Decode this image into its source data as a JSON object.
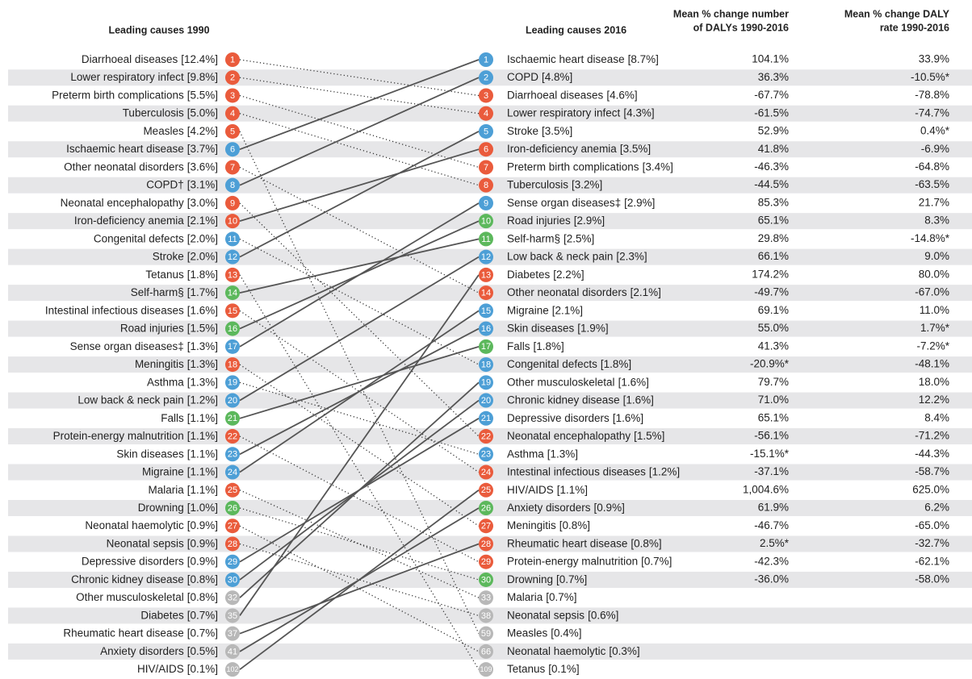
{
  "header": {
    "left": "Leading causes 1990",
    "right": "Leading causes 2016",
    "col3": [
      "Mean % change number",
      "of DALYs 1990-2016"
    ],
    "col4": [
      "Mean % change DALY",
      "rate 1990-2016"
    ]
  },
  "causes_1990": [
    {
      "rank": 1,
      "name": "Diarrhoeal diseases",
      "share": "[12.4%]",
      "color": "#ea5b3c"
    },
    {
      "rank": 2,
      "name": "Lower respiratory infect",
      "share": "[9.8%]",
      "color": "#ea5b3c"
    },
    {
      "rank": 3,
      "name": "Preterm birth complications",
      "share": "[5.5%]",
      "color": "#ea5b3c"
    },
    {
      "rank": 4,
      "name": "Tuberculosis",
      "share": "[5.0%]",
      "color": "#ea5b3c"
    },
    {
      "rank": 5,
      "name": "Measles",
      "share": "[4.2%]",
      "color": "#ea5b3c"
    },
    {
      "rank": 6,
      "name": "Ischaemic heart disease",
      "share": "[3.7%]",
      "color": "#4d9fd6"
    },
    {
      "rank": 7,
      "name": "Other neonatal disorders",
      "share": "[3.6%]",
      "color": "#ea5b3c"
    },
    {
      "rank": 8,
      "name": "COPD†",
      "share": "[3.1%]",
      "color": "#4d9fd6"
    },
    {
      "rank": 9,
      "name": "Neonatal encephalopathy",
      "share": "[3.0%]",
      "color": "#ea5b3c"
    },
    {
      "rank": 10,
      "name": "Iron-deficiency anemia",
      "share": "[2.1%]",
      "color": "#ea5b3c"
    },
    {
      "rank": 11,
      "name": "Congenital defects",
      "share": "[2.0%]",
      "color": "#4d9fd6"
    },
    {
      "rank": 12,
      "name": "Stroke",
      "share": "[2.0%]",
      "color": "#4d9fd6"
    },
    {
      "rank": 13,
      "name": "Tetanus",
      "share": "[1.8%]",
      "color": "#ea5b3c"
    },
    {
      "rank": 14,
      "name": "Self-harm§",
      "share": "[1.7%]",
      "color": "#5cb85c"
    },
    {
      "rank": 15,
      "name": "Intestinal infectious diseases",
      "share": "[1.6%]",
      "color": "#ea5b3c"
    },
    {
      "rank": 16,
      "name": "Road injuries",
      "share": "[1.5%]",
      "color": "#5cb85c"
    },
    {
      "rank": 17,
      "name": "Sense organ diseases‡",
      "share": "[1.3%]",
      "color": "#4d9fd6"
    },
    {
      "rank": 18,
      "name": "Meningitis",
      "share": "[1.3%]",
      "color": "#ea5b3c"
    },
    {
      "rank": 19,
      "name": "Asthma",
      "share": "[1.3%]",
      "color": "#4d9fd6"
    },
    {
      "rank": 20,
      "name": "Low back & neck pain",
      "share": "[1.2%]",
      "color": "#4d9fd6"
    },
    {
      "rank": 21,
      "name": "Falls",
      "share": "[1.1%]",
      "color": "#5cb85c"
    },
    {
      "rank": 22,
      "name": "Protein-energy malnutrition",
      "share": "[1.1%]",
      "color": "#ea5b3c"
    },
    {
      "rank": 23,
      "name": "Skin diseases",
      "share": "[1.1%]",
      "color": "#4d9fd6"
    },
    {
      "rank": 24,
      "name": "Migraine",
      "share": "[1.1%]",
      "color": "#4d9fd6"
    },
    {
      "rank": 25,
      "name": "Malaria",
      "share": "[1.1%]",
      "color": "#ea5b3c"
    },
    {
      "rank": 26,
      "name": "Drowning",
      "share": "[1.0%]",
      "color": "#5cb85c"
    },
    {
      "rank": 27,
      "name": "Neonatal haemolytic",
      "share": "[0.9%]",
      "color": "#ea5b3c"
    },
    {
      "rank": 28,
      "name": "Neonatal sepsis",
      "share": "[0.9%]",
      "color": "#ea5b3c"
    },
    {
      "rank": 29,
      "name": "Depressive disorders",
      "share": "[0.9%]",
      "color": "#4d9fd6"
    },
    {
      "rank": 30,
      "name": "Chronic kidney disease",
      "share": "[0.8%]",
      "color": "#4d9fd6"
    },
    {
      "rank": 32,
      "name": "Other musculoskeletal",
      "share": "[0.8%]",
      "color": "#b8b8b8"
    },
    {
      "rank": 35,
      "name": "Diabetes",
      "share": "[0.7%]",
      "color": "#b8b8b8"
    },
    {
      "rank": 37,
      "name": "Rheumatic heart disease",
      "share": "[0.7%]",
      "color": "#b8b8b8"
    },
    {
      "rank": 41,
      "name": "Anxiety disorders",
      "share": "[0.5%]",
      "color": "#b8b8b8"
    },
    {
      "rank": 102,
      "name": "HIV/AIDS",
      "share": "[0.1%]",
      "color": "#b8b8b8"
    }
  ],
  "causes_2016": [
    {
      "rank": 1,
      "name": "Ischaemic heart disease",
      "share": "[8.7%]",
      "change_number": "104.1%",
      "change_rate": "33.9%",
      "color": "#4d9fd6"
    },
    {
      "rank": 2,
      "name": "COPD",
      "share": "[4.8%]",
      "change_number": "36.3%",
      "change_rate": "-10.5%*",
      "color": "#4d9fd6"
    },
    {
      "rank": 3,
      "name": "Diarrhoeal diseases",
      "share": "[4.6%]",
      "change_number": "-67.7%",
      "change_rate": "-78.8%",
      "color": "#ea5b3c"
    },
    {
      "rank": 4,
      "name": "Lower respiratory infect",
      "share": "[4.3%]",
      "change_number": "-61.5%",
      "change_rate": "-74.7%",
      "color": "#ea5b3c"
    },
    {
      "rank": 5,
      "name": "Stroke",
      "share": "[3.5%]",
      "change_number": "52.9%",
      "change_rate": "0.4%*",
      "color": "#4d9fd6"
    },
    {
      "rank": 6,
      "name": "Iron-deficiency anemia",
      "share": "[3.5%]",
      "change_number": "41.8%",
      "change_rate": "-6.9%",
      "color": "#ea5b3c"
    },
    {
      "rank": 7,
      "name": "Preterm birth complications",
      "share": "[3.4%]",
      "change_number": "-46.3%",
      "change_rate": "-64.8%",
      "color": "#ea5b3c"
    },
    {
      "rank": 8,
      "name": "Tuberculosis",
      "share": "[3.2%]",
      "change_number": "-44.5%",
      "change_rate": "-63.5%",
      "color": "#ea5b3c"
    },
    {
      "rank": 9,
      "name": "Sense organ diseases‡",
      "share": "[2.9%]",
      "change_number": "85.3%",
      "change_rate": "21.7%",
      "color": "#4d9fd6"
    },
    {
      "rank": 10,
      "name": "Road injuries",
      "share": "[2.9%]",
      "change_number": "65.1%",
      "change_rate": "8.3%",
      "color": "#5cb85c"
    },
    {
      "rank": 11,
      "name": "Self-harm§",
      "share": "[2.5%]",
      "change_number": "29.8%",
      "change_rate": "-14.8%*",
      "color": "#5cb85c"
    },
    {
      "rank": 12,
      "name": "Low back & neck pain",
      "share": "[2.3%]",
      "change_number": "66.1%",
      "change_rate": "9.0%",
      "color": "#4d9fd6"
    },
    {
      "rank": 13,
      "name": "Diabetes",
      "share": "[2.2%]",
      "change_number": "174.2%",
      "change_rate": "80.0%",
      "color": "#ea5b3c"
    },
    {
      "rank": 14,
      "name": "Other neonatal disorders",
      "share": "[2.1%]",
      "change_number": "-49.7%",
      "change_rate": "-67.0%",
      "color": "#ea5b3c"
    },
    {
      "rank": 15,
      "name": "Migraine",
      "share": "[2.1%]",
      "change_number": "69.1%",
      "change_rate": "11.0%",
      "color": "#4d9fd6"
    },
    {
      "rank": 16,
      "name": "Skin diseases",
      "share": "[1.9%]",
      "change_number": "55.0%",
      "change_rate": "1.7%*",
      "color": "#4d9fd6"
    },
    {
      "rank": 17,
      "name": "Falls",
      "share": "[1.8%]",
      "change_number": "41.3%",
      "change_rate": "-7.2%*",
      "color": "#5cb85c"
    },
    {
      "rank": 18,
      "name": "Congenital defects",
      "share": "[1.8%]",
      "change_number": "-20.9%*",
      "change_rate": "-48.1%",
      "color": "#4d9fd6"
    },
    {
      "rank": 19,
      "name": "Other musculoskeletal",
      "share": "[1.6%]",
      "change_number": "79.7%",
      "change_rate": "18.0%",
      "color": "#4d9fd6"
    },
    {
      "rank": 20,
      "name": "Chronic kidney disease",
      "share": "[1.6%]",
      "change_number": "71.0%",
      "change_rate": "12.2%",
      "color": "#4d9fd6"
    },
    {
      "rank": 21,
      "name": "Depressive disorders",
      "share": "[1.6%]",
      "change_number": "65.1%",
      "change_rate": "8.4%",
      "color": "#4d9fd6"
    },
    {
      "rank": 22,
      "name": "Neonatal encephalopathy",
      "share": "[1.5%]",
      "change_number": "-56.1%",
      "change_rate": "-71.2%",
      "color": "#ea5b3c"
    },
    {
      "rank": 23,
      "name": "Asthma",
      "share": "[1.3%]",
      "change_number": "-15.1%*",
      "change_rate": "-44.3%",
      "color": "#4d9fd6"
    },
    {
      "rank": 24,
      "name": "Intestinal infectious diseases",
      "share": "[1.2%]",
      "change_number": "-37.1%",
      "change_rate": "-58.7%",
      "color": "#ea5b3c"
    },
    {
      "rank": 25,
      "name": "HIV/AIDS",
      "share": "[1.1%]",
      "change_number": "1,004.6%",
      "change_rate": "625.0%",
      "color": "#ea5b3c"
    },
    {
      "rank": 26,
      "name": "Anxiety disorders",
      "share": "[0.9%]",
      "change_number": "61.9%",
      "change_rate": "6.2%",
      "color": "#5cb85c"
    },
    {
      "rank": 27,
      "name": "Meningitis",
      "share": "[0.8%]",
      "change_number": "-46.7%",
      "change_rate": "-65.0%",
      "color": "#ea5b3c"
    },
    {
      "rank": 28,
      "name": "Rheumatic heart disease",
      "share": "[0.8%]",
      "change_number": "2.5%*",
      "change_rate": "-32.7%",
      "color": "#ea5b3c"
    },
    {
      "rank": 29,
      "name": "Protein-energy malnutrition",
      "share": "[0.7%]",
      "change_number": "-42.3%",
      "change_rate": "-62.1%",
      "color": "#ea5b3c"
    },
    {
      "rank": 30,
      "name": "Drowning",
      "share": "[0.7%]",
      "change_number": "-36.0%",
      "change_rate": "-58.0%",
      "color": "#5cb85c"
    },
    {
      "rank": 33,
      "name": "Malaria",
      "share": "[0.7%]",
      "color": "#b8b8b8"
    },
    {
      "rank": 38,
      "name": "Neonatal sepsis",
      "share": "[0.6%]",
      "color": "#b8b8b8"
    },
    {
      "rank": 59,
      "name": "Measles",
      "share": "[0.4%]",
      "color": "#b8b8b8"
    },
    {
      "rank": 66,
      "name": "Neonatal haemolytic",
      "share": "[0.3%]",
      "color": "#b8b8b8"
    },
    {
      "rank": 109,
      "name": "Tetanus",
      "share": "[0.1%]",
      "color": "#b8b8b8"
    }
  ]
}
